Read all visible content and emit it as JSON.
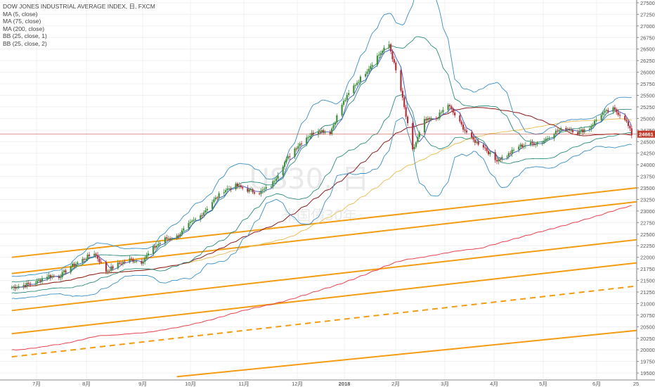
{
  "header": {
    "lines": [
      "DOW JONES INDUSTRIAL AVERAGE INDEX, 日, FXCM",
      "MA (5, close)",
      "MA (75, close)",
      "MA (200, close)",
      "BB (25, close, 1)",
      "BB (25, close, 2)"
    ]
  },
  "watermark": {
    "symbol": "US30, 日",
    "subtitle": "米国債30年"
  },
  "chart_data": {
    "type": "candlestick",
    "title": "DOW JONES INDUSTRIAL AVERAGE INDEX, 日, FXCM",
    "x_tick_labels": [
      "7月",
      "8月",
      "9月",
      "10月",
      "11月",
      "12月",
      "2018",
      "2月",
      "3月",
      "4月",
      "5月",
      "6月",
      "25"
    ],
    "y_tick_labels": [
      19500,
      19750,
      20000,
      20250,
      20500,
      20750,
      21000,
      21250,
      21500,
      21750,
      22000,
      22250,
      22500,
      22750,
      23000,
      23250,
      23500,
      23750,
      24000,
      24250,
      24500,
      24750,
      25000,
      25250,
      25500,
      25750,
      26000,
      26250,
      26500,
      26750,
      27000,
      27250,
      27500
    ],
    "ylim": [
      19380,
      27560
    ],
    "current_price": 24661,
    "colors": {
      "up": "#3f8f3f",
      "down": "#b0303b",
      "ma5": "#3a56c8",
      "ma75": "#8b1a1a",
      "ma200": "#e8424f",
      "bb1": "#2c8c7c",
      "bb2": "#3b8ec4",
      "ma_yellow": "#e8c060",
      "trendline": "#f39c12",
      "price_line": "#c0392b"
    },
    "close_series": {
      "x": [
        "2017-06-19",
        "2017-06-26",
        "2017-07-03",
        "2017-07-10",
        "2017-07-17",
        "2017-07-24",
        "2017-07-31",
        "2017-08-07",
        "2017-08-14",
        "2017-08-21",
        "2017-08-28",
        "2017-09-04",
        "2017-09-11",
        "2017-09-18",
        "2017-09-25",
        "2017-10-02",
        "2017-10-09",
        "2017-10-16",
        "2017-10-23",
        "2017-10-30",
        "2017-11-06",
        "2017-11-13",
        "2017-11-20",
        "2017-11-27",
        "2017-12-04",
        "2017-12-11",
        "2017-12-18",
        "2017-12-25",
        "2018-01-01",
        "2018-01-08",
        "2018-01-15",
        "2018-01-22",
        "2018-01-29",
        "2018-02-05",
        "2018-02-12",
        "2018-02-19",
        "2018-02-26",
        "2018-03-05",
        "2018-03-12",
        "2018-03-19",
        "2018-03-26",
        "2018-04-02",
        "2018-04-09",
        "2018-04-16",
        "2018-04-23",
        "2018-04-30",
        "2018-05-07",
        "2018-05-14",
        "2018-05-21",
        "2018-05-28",
        "2018-06-04",
        "2018-06-11",
        "2018-06-18",
        "2018-06-22"
      ],
      "close": [
        21350,
        21400,
        21450,
        21600,
        21580,
        21800,
        21950,
        22100,
        21700,
        21850,
        21950,
        21900,
        22200,
        22400,
        22450,
        22700,
        22900,
        23200,
        23450,
        23550,
        23450,
        23400,
        23550,
        24000,
        24350,
        24600,
        24750,
        24700,
        25300,
        25700,
        26000,
        26350,
        26600,
        25600,
        24300,
        24950,
        25000,
        25300,
        24900,
        24550,
        24400,
        24100,
        24200,
        24400,
        24450,
        24500,
        24700,
        24800,
        24700,
        24800,
        25100,
        25200,
        25000,
        24661
      ]
    },
    "trendlines": [
      {
        "style": "solid",
        "x": [
          "2017-06-19",
          "2018-06-25"
        ],
        "y": [
          22000,
          23500
        ]
      },
      {
        "style": "solid",
        "x": [
          "2017-06-19",
          "2018-06-25"
        ],
        "y": [
          21650,
          23200
        ]
      },
      {
        "style": "solid",
        "x": [
          "2017-06-19",
          "2018-06-25"
        ],
        "y": [
          20850,
          22380
        ]
      },
      {
        "style": "solid",
        "x": [
          "2017-06-19",
          "2018-06-25"
        ],
        "y": [
          20350,
          21880
        ]
      },
      {
        "style": "dashed",
        "x": [
          "2017-06-19",
          "2018-06-25"
        ],
        "y": [
          19850,
          21380
        ]
      },
      {
        "style": "solid",
        "x": [
          "2017-09-25",
          "2018-06-25"
        ],
        "y": [
          19420,
          20420
        ]
      }
    ]
  }
}
